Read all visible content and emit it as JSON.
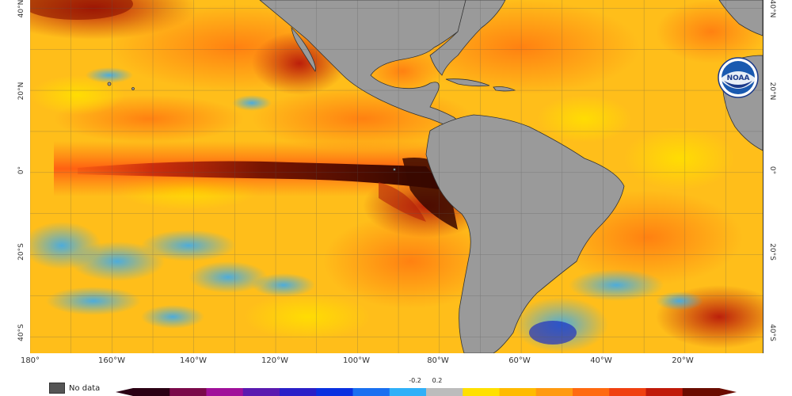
{
  "map": {
    "lat_labels_left": [
      "40°N",
      "20°N",
      "0°",
      "20°S",
      "40°S"
    ],
    "lat_labels_right": [
      "40°N",
      "20°N",
      "0°",
      "20°S",
      "40°S"
    ],
    "lon_labels": [
      "180°",
      "160°W",
      "140°W",
      "120°W",
      "100°W",
      "80°W",
      "60°W",
      "40°W",
      "20°W"
    ],
    "extent": {
      "lon_min": -180,
      "lon_max": -1,
      "lat_min": -44,
      "lat_max": 42
    }
  },
  "legend": {
    "no_data_label": "No data",
    "tick_neg": "-0.2",
    "tick_pos": "0.2",
    "colors": [
      "#2a0014",
      "#7a0a4a",
      "#a0109a",
      "#5a1ab0",
      "#2a1fc8",
      "#0a30e0",
      "#1a70f0",
      "#30b0f8",
      "#bcbcbc",
      "#ffe000",
      "#ffbb00",
      "#ff9a10",
      "#ff6a10",
      "#f04010",
      "#c01a0a",
      "#6a0c00"
    ]
  },
  "logo": {
    "text": "NOAA"
  },
  "colors": {
    "land": "#9a9a9a",
    "ocean_base": "#ffbe1a",
    "warm": "#ff8a1a",
    "hot": "#c8200a",
    "extreme": "#3a0a00",
    "cold": "#4ab6f0",
    "deep_cold": "#2030c0"
  }
}
